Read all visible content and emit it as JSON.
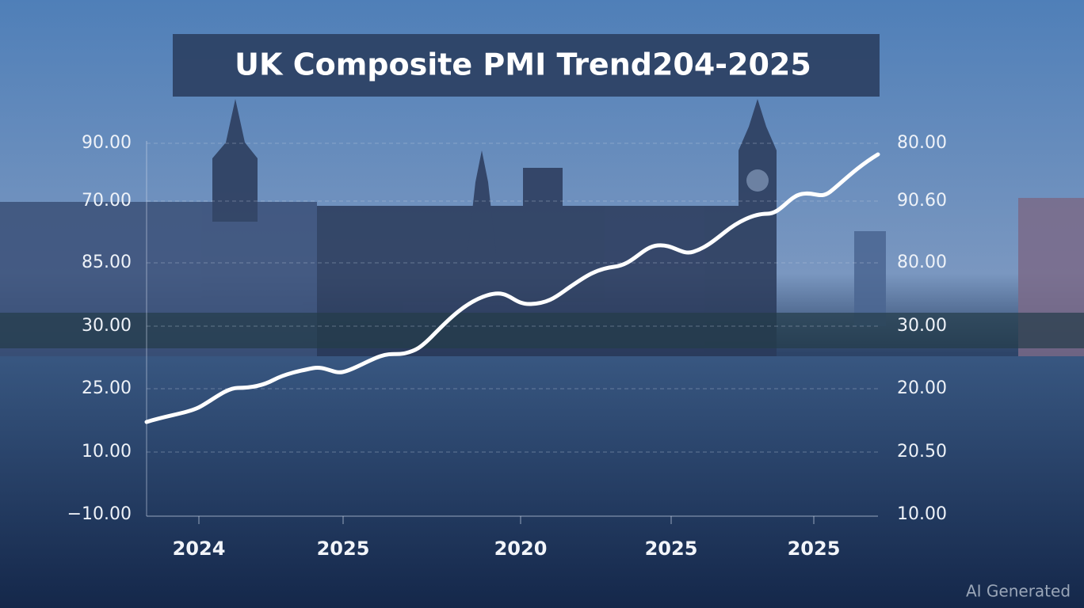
{
  "title": "UK Composite PMI Trend204-2025",
  "left_axis_labels": [
    "90.00",
    "70.00",
    "85.00",
    "30.00",
    "25.00",
    "10.00",
    "−10.00"
  ],
  "right_axis_labels": [
    "80.00",
    "90.60",
    "80.00",
    "30.00",
    "20.00",
    "20.50",
    "10.00"
  ],
  "x_axis_labels": [
    "2024",
    "2025",
    "2020",
    "2025",
    "2025"
  ],
  "watermark": "AI Generated"
}
